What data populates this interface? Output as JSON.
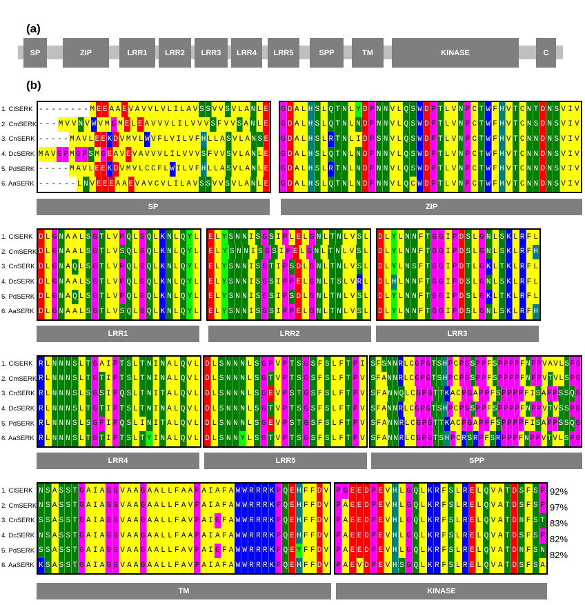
{
  "panel_a": {
    "label": "(a)"
  },
  "panel_b": {
    "label": "(b)"
  },
  "domains": [
    "SP",
    "ZIP",
    "LRR1",
    "LRR2",
    "LRR3",
    "LRR4",
    "LRR5",
    "SPP",
    "TM",
    "KINASE",
    "C"
  ],
  "species": [
    "1. ClSERK",
    "2. CmSERK",
    "3. CnSERK",
    "4. DcSERK",
    "5. PdSERK",
    "6. AaSERK"
  ],
  "percentages": [
    "92%",
    "97%",
    "83%",
    "82%",
    "82%"
  ],
  "colors": {
    "Y": "#ffff00",
    "G": "#007f00",
    "B": "#0000ff",
    "R": "#ff0000",
    "M": "#ff00ff",
    "L": "#00ff00",
    "W": "#ffffff",
    "O": "#808000",
    "T": "#007f7f"
  },
  "alignment": {
    "SP": {
      "label": "SP",
      "rows": [
        "--------MEEAAEVAVVLVLILAVSSVVSVLANLE",
        "---MVVNVWVMGMELEAVVVLILVVVSFVVSANLE",
        "-----MAVLEEKDVMVLWVFLVILVFHLLASVLANSE",
        "MAVGPMGPSMGEAVEVAVVVLILVVVSFVVSVLANLE",
        "-----MAVLEEKDVMVLCCFLWILVFHLLASVLANLE",
        "------LNVEEEAAEVAVCVLILAVSSVVSVLANLE"
      ]
    },
    "ZIP": {
      "label": "ZIP",
      "rows": [
        "GDALHSLQTNLYDPNNVLQSWDPTLVNPCTWFHVTCNTDNSVIV",
        "GDALHSLQTNLNDPNNVLQSWDPTLVNPCTWFHVTCNSDNSVIV",
        "GDALHSLRTNLIDPSNVLQSWDPTLVNPCTWFHVTCNNDNSVIV",
        "GDALHSLQTNLNDPNNVLQSWDPTLVNPCTWFHVTCNNDNSVIV",
        "GDALHSLRTNLNDPNNVLQSWDPTLVNPCTWFHVTCNNDNSVIV",
        "GDALHSLQTNLNDPNNVLQCWDPTLVNPCTWFHVTCNNDNSVIV"
      ]
    },
    "LRR1": {
      "label": "LRR1",
      "rows": [
        "DLGNAALSGTLVPQLGQLKNLQYL",
        "DLGNAALSGTLVSQLGQLKNLQYL",
        "DLGNAQLSGTLVPQLGQLKNLQYL",
        "DLGNAALSGTLVPQLGQLKNLQYL",
        "DLGNAQLSGTLVPQLGQLKNLQYL",
        "DLGNAALSGTLVSQLGQLKNLQYL"
      ]
    },
    "LRR2": {
      "label": "LRR2",
      "rows": [
        "ELYSNNISGSIPLELGNLTNLVSL",
        "ELYSNNISGSIPELGNLTNLVSL",
        "ELYSNNISGTIPSDLGNLTNLVSL",
        "ELYSNNISGSIPPELGNLTSLVRL",
        "ELYSNNISGSIPSDLGNLTNLVSL",
        "ELYSNNISGSIPPELGNLTNLVSL"
      ]
    },
    "LRR3": {
      "label": "LRR3",
      "rows": [
        "DLYLNNFTGGIPDSLGNLSKLRFL",
        "DLYLNNFTGGIPDSLGNLSKLRFH",
        "DLYLNSFTGGIPDTLGKLTKLRFL",
        "DLHLNNFTGGIPDSLGNLSKLRFL",
        "DLYLNNFTGGIPDSLGKLTKLRFL",
        "DLYLNNFTGGIPDSLGNLSKLRFH"
      ]
    },
    "LRR4": {
      "label": "LRR4",
      "rows": [
        "RLNNNSLTGAIPTSLTNINALQVL",
        "RLNNNSLTGTIPTSLTNINALQVL",
        "RLNNNSLSGSIPQSLTNITALQVL",
        "RLNNNSLTGTIPTSLTNINALQVL",
        "RLNNNSLSGPIPQSLINITALQVL",
        "RLNNNSLTGTIPTSLTYINALQVL"
      ]
    },
    "LRR5": {
      "label": "LRR5",
      "rows": [
        "DLSNNNLSGPVPTSGSFSLFTPI",
        "DLSNNNLSGTVPTSGSFSLFTPV",
        "DLSNNNLSGEVPSTGSFSLFTPV",
        "DLSNNNLSGTVPTSGSFSLFTPV",
        "DLSNNNLSGEVPSTGSFSLFTPV",
        "DLSNNYLSGTVPTSGSFSLFTPV"
      ]
    },
    "SPP": {
      "label": "SPP",
      "rows": [
        "SFSNNRLCGPGTSHPCPGSPPFSPPPPFNPPVAVLSPG",
        "SFANNRLCGPGTSHPCPGSPPFSPPPPFNPPVTVLSPG",
        "SFANNQLCGPGTTKACPGAPPFSPPPPFISAPPSSQG",
        "SFANNRLCGPGTSHPCPGSPPFSPPPPFNPPVTVSSPG",
        "SFANNRLCGPGTTKACPGAPPFSPPPPFISAPPSSQG",
        "SFANNRLCGPGTSHPCRSRPFSRPPPFNPPVTVLSPG"
      ]
    },
    "TM": {
      "label": "TM",
      "rows": [
        "NSASSTGAIAGGVAAGAALLFAAPAIAFAWWRRRKPQEHFFDV",
        "NSASSTGAIAGGVAAGAALLFAVPAIAFAWWRRRKPQEHFFDV",
        "SSASSTGAIAGGVAAGAALLFAVPAIGFAWWRRRKPQEHFFDV",
        "NSASSTGAIAGGVAAGAALLFAAPAIAFAWWRRRKPQEHFFDV",
        "SSASSTGAIAGGVAAGAALLFAVPAIGFAWWRRRKPQEYFFDV",
        "KSASSTGAIAGGVAAGAALLFAVPAIAFAWWRRRKPQEHFFDV"
      ]
    },
    "KINASE": {
      "label": "KINASE",
      "rows": [
        "PGEEDPEVHLGQLKRFSLRELQVATDSFSP",
        "PAEEDPEVHLGQLKRFSLRELQVATDSFSP",
        "PAEEDPEVHLGQLKRFSLRELQVATDNFST",
        "PAEEDPEVHLGQLKRFSLRELQVATDSFSP",
        "PAEEDPEVHLGQLKRFSLRELQVATDNFSN",
        "PAEVDPEVHSGQLKRFSLRELQVATDSFSA"
      ]
    }
  }
}
